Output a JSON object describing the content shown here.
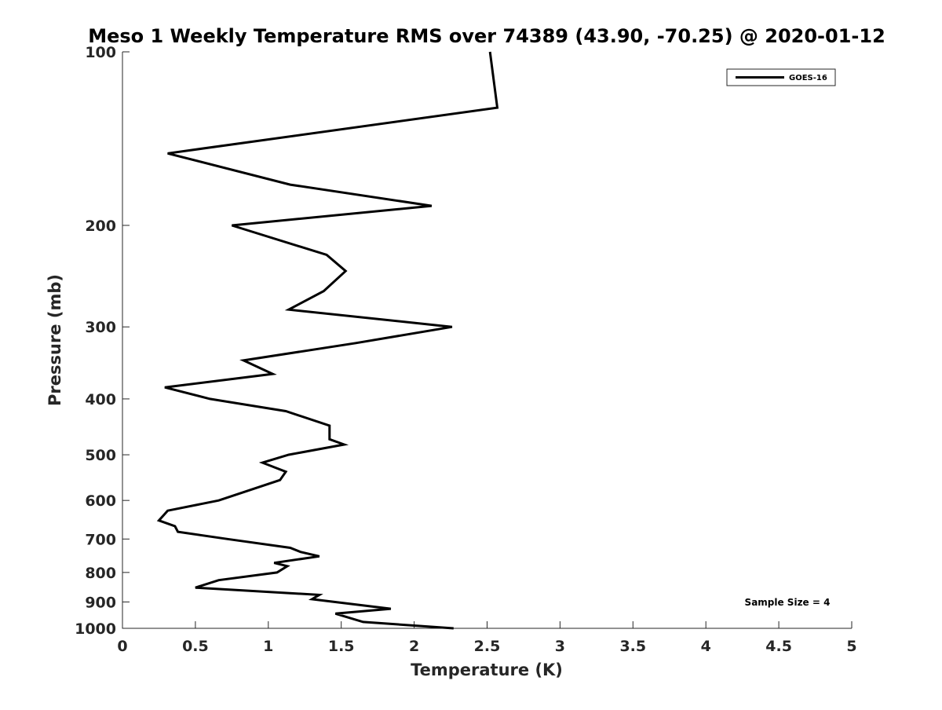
{
  "chart_data": {
    "type": "line",
    "title": "Meso 1 Weekly Temperature RMS over 74389 (43.90, -70.25) @ 2020-01-12",
    "xlabel": "Temperature (K)",
    "ylabel": "Pressure (mb)",
    "xlim": [
      0,
      5
    ],
    "ylim": [
      100,
      1000
    ],
    "y_scale": "log",
    "y_reversed": true,
    "x_ticks": [
      "0",
      "0.5",
      "1",
      "1.5",
      "2",
      "2.5",
      "3",
      "3.5",
      "4",
      "4.5",
      "5"
    ],
    "y_ticks": [
      "100",
      "200",
      "300",
      "400",
      "500",
      "600",
      "700",
      "800",
      "900",
      "1000"
    ],
    "grid": false,
    "legend_position": "top-right",
    "line_color": "#000000",
    "series": [
      {
        "name": "GOES-16",
        "x": [
          2.52,
          2.57,
          0.31,
          1.15,
          2.12,
          0.75,
          1.4,
          1.53,
          1.38,
          1.14,
          2.26,
          1.6,
          0.83,
          1.03,
          0.29,
          0.6,
          1.12,
          1.42,
          1.42,
          1.52,
          1.14,
          0.96,
          1.12,
          1.08,
          0.66,
          0.31,
          0.25,
          0.36,
          0.38,
          0.72,
          1.15,
          1.22,
          1.35,
          1.04,
          1.13,
          1.06,
          0.66,
          0.5,
          1.35,
          1.3,
          1.84,
          1.46,
          1.65,
          2.27
        ],
        "y": [
          100,
          125,
          150,
          170,
          185,
          200,
          225,
          240,
          260,
          280,
          300,
          320,
          343,
          362,
          382,
          400,
          420,
          445,
          470,
          480,
          500,
          516,
          535,
          553,
          600,
          625,
          650,
          665,
          680,
          700,
          725,
          737,
          750,
          770,
          780,
          800,
          825,
          850,
          875,
          890,
          925,
          943,
          975,
          1000
        ]
      }
    ],
    "annotations": [
      "Sample Size = 4"
    ]
  }
}
